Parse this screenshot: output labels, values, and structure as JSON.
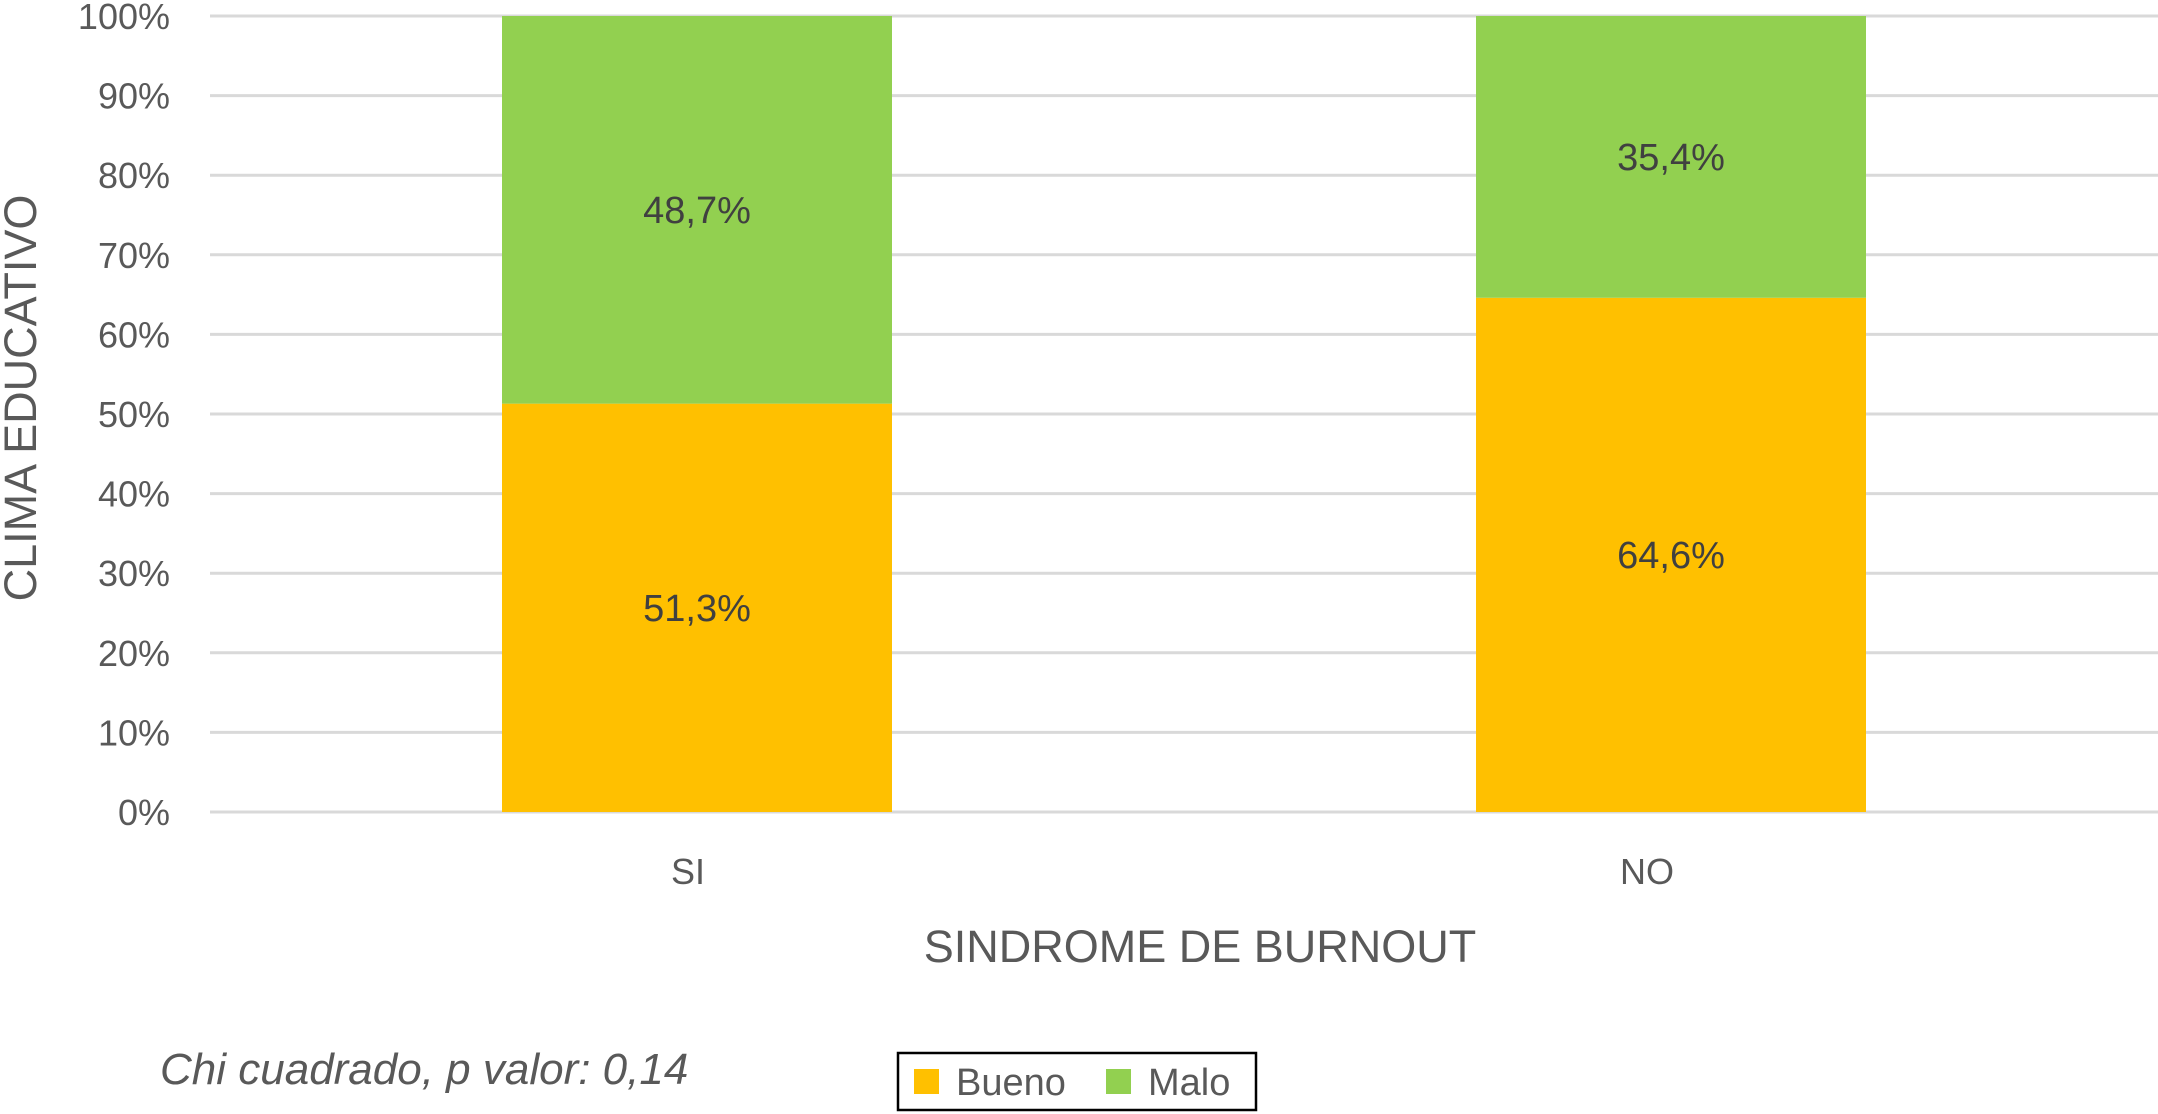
{
  "chart_data": {
    "type": "bar",
    "stacked": true,
    "percent_scale": true,
    "categories": [
      "SI",
      "NO"
    ],
    "series": [
      {
        "name": "Bueno",
        "values": [
          51.3,
          64.6
        ],
        "labels": [
          "51,3%",
          "64,6%"
        ],
        "color": "#FFC000"
      },
      {
        "name": "Malo",
        "values": [
          48.7,
          35.4
        ],
        "labels": [
          "48,7%",
          "35,4%"
        ],
        "color": "#92D050"
      }
    ],
    "xlabel": "SINDROME DE BURNOUT",
    "ylabel": "CLIMA EDUCATIVO",
    "ylim": [
      0,
      100
    ],
    "yticks": [
      0,
      10,
      20,
      30,
      40,
      50,
      60,
      70,
      80,
      90,
      100
    ],
    "ytick_labels": [
      "0%",
      "10%",
      "20%",
      "30%",
      "40%",
      "50%",
      "60%",
      "70%",
      "80%",
      "90%",
      "100%"
    ],
    "grid": true,
    "gridline_color": "#D9D9D9",
    "legend_position": "bottom",
    "annotation": "Chi cuadrado, p valor: 0,14"
  }
}
